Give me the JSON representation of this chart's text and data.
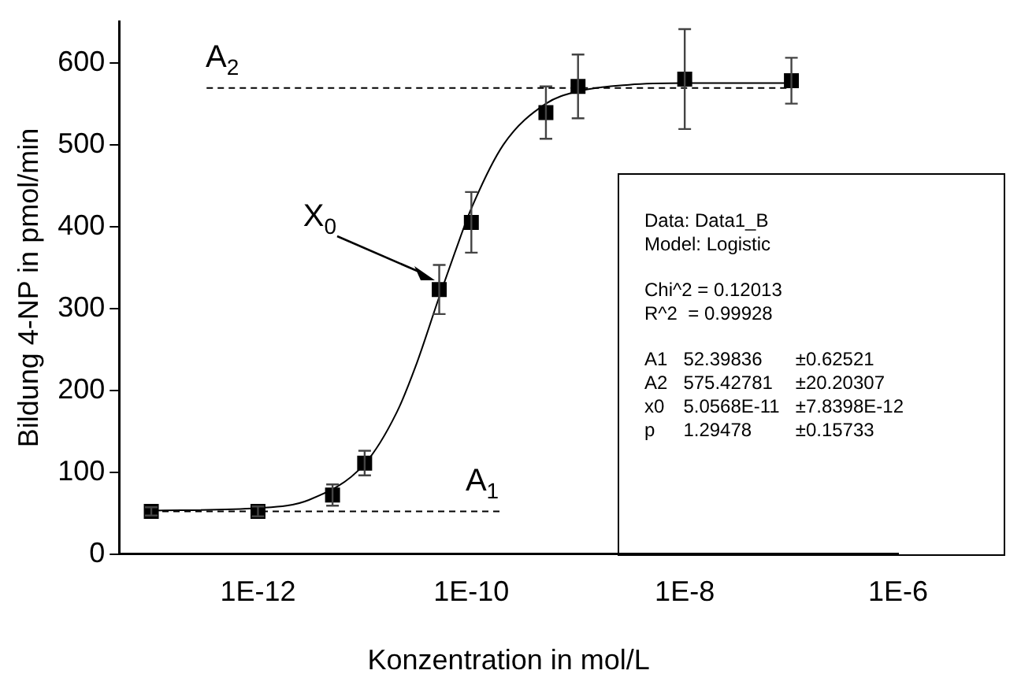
{
  "chart_data": {
    "type": "scatter",
    "xlabel": "Konzentration in mol/L",
    "ylabel": "Bildung 4-NP in pmol/min",
    "log": "x",
    "xlim": [
      5e-14,
      1e-06
    ],
    "ylim": [
      0,
      650
    ],
    "xticks": [
      {
        "value": 1e-12,
        "label": "1E-12"
      },
      {
        "value": 1e-10,
        "label": "1E-10"
      },
      {
        "value": 1e-08,
        "label": "1E-8"
      },
      {
        "value": 1e-06,
        "label": "1E-6"
      }
    ],
    "yticks": [
      0,
      100,
      200,
      300,
      400,
      500,
      600
    ],
    "grid": false,
    "legend": false,
    "series": [
      {
        "color": "#000000",
        "marker": "square",
        "x": [
          1e-13,
          1e-12,
          5e-12,
          1e-11,
          5e-11,
          1e-10,
          5e-10,
          1e-09,
          1e-08,
          1e-07
        ],
        "values": [
          52,
          52,
          72,
          111,
          323,
          405,
          539,
          571,
          580,
          578
        ],
        "errors": [
          5,
          6,
          13,
          15,
          30,
          37,
          32,
          39,
          61,
          28
        ]
      },
      {
        "type": "line",
        "color": "#000000",
        "x": [
          1e-13,
          1e-12,
          3e-12,
          1e-11,
          2e-11,
          3e-11,
          5e-11,
          7e-11,
          1e-10,
          2e-10,
          5e-10,
          1e-09,
          3e-09,
          1e-08,
          1e-07
        ],
        "values": [
          53,
          56,
          66,
          110,
          173,
          229,
          314,
          368,
          422,
          500,
          550,
          565,
          573,
          575,
          575
        ]
      },
      {
        "type": "line",
        "name": "A$_{1}$",
        "color": "#000000",
        "line_style": "dashed",
        "x": [
          1e-13,
          1.9e-10
        ],
        "values": [
          52,
          52
        ]
      },
      {
        "type": "line",
        "name": "A$_{2}$",
        "color": "#000000",
        "line_style": "dashed",
        "x": [
          3.3e-13,
          1e-07
        ],
        "values": [
          569,
          569
        ]
      }
    ],
    "annotations": [
      "X$_{0}$",
      "Data: Data1_B\nModel: Logistic",
      "Chi^2 = 0.12013\nR^2  = 0.99928",
      "A1\t52.39836\t±0.62521\nA2\t575.42781\t±20.20307\nx0\t5.0568E-11\t±7.8398E-12\np\t1.29478\t±0.15733"
    ]
  }
}
